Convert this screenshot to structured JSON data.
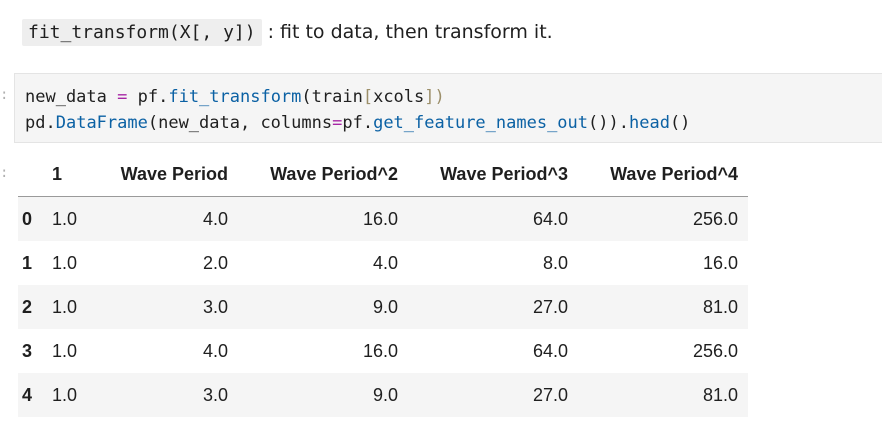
{
  "markdown": {
    "code": "fit_transform(X[, y])",
    "text": ": fit to data, then transform it."
  },
  "code_cell": {
    "prompt_glyph": ":",
    "line1": {
      "t1": "new_data ",
      "t2": "=",
      "t3": " pf",
      "t4": ".",
      "t5": "fit_transform",
      "t6": "(train",
      "t7": "[",
      "t8": "xcols",
      "t9": "]",
      "t10": ")"
    },
    "line2": {
      "t1": "pd",
      "t2": ".",
      "t3": "DataFrame",
      "t4": "(new_data, columns",
      "t5": "=",
      "t6": "pf",
      "t7": ".",
      "t8": "get_feature_names_out",
      "t9": "())",
      "t10": ".",
      "t11": "head",
      "t12": "()"
    }
  },
  "output": {
    "prompt_glyph": ":",
    "columns": [
      "",
      "1",
      "Wave Period",
      "Wave Period^2",
      "Wave Period^3",
      "Wave Period^4"
    ],
    "rows": [
      {
        "index": "0",
        "cells": [
          "1.0",
          "4.0",
          "16.0",
          "64.0",
          "256.0"
        ]
      },
      {
        "index": "1",
        "cells": [
          "1.0",
          "2.0",
          "4.0",
          "8.0",
          "16.0"
        ]
      },
      {
        "index": "2",
        "cells": [
          "1.0",
          "3.0",
          "9.0",
          "27.0",
          "81.0"
        ]
      },
      {
        "index": "3",
        "cells": [
          "1.0",
          "4.0",
          "16.0",
          "64.0",
          "256.0"
        ]
      },
      {
        "index": "4",
        "cells": [
          "1.0",
          "3.0",
          "9.0",
          "27.0",
          "81.0"
        ]
      }
    ]
  }
}
